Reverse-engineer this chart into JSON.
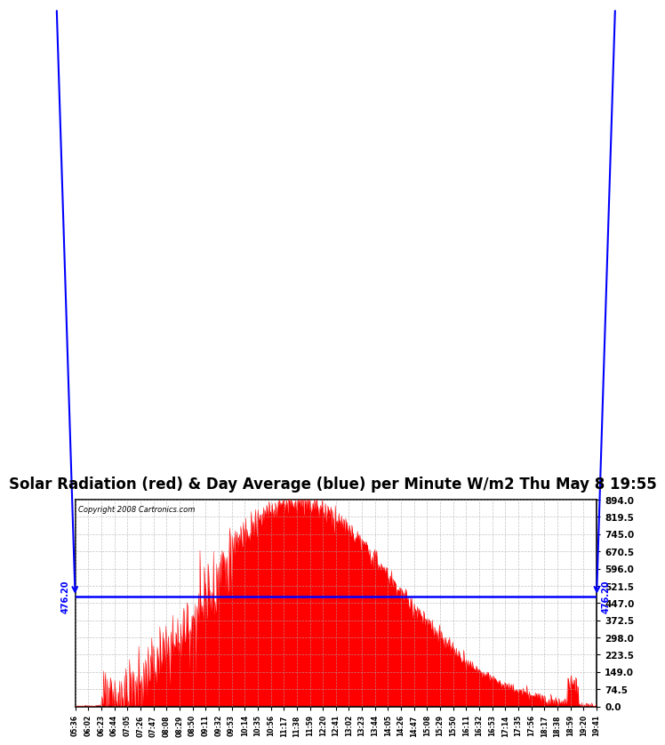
{
  "title": "Solar Radiation (red) & Day Average (blue) per Minute W/m2 Thu May 8 19:55",
  "copyright": "Copyright 2008 Cartronics.com",
  "y_max": 894.0,
  "y_min": 0.0,
  "y_ticks": [
    0.0,
    74.5,
    149.0,
    223.5,
    298.0,
    372.5,
    447.0,
    521.5,
    596.0,
    670.5,
    745.0,
    819.5,
    894.0
  ],
  "day_average": 476.2,
  "fill_color": "#FF0000",
  "avg_line_color": "#0000FF",
  "bg_color": "#FFFFFF",
  "plot_bg_color": "#FFFFFF",
  "grid_color": "#AAAAAA",
  "title_fontsize": 12,
  "avg_label": "476.20",
  "x_labels": [
    "05:36",
    "06:02",
    "06:23",
    "06:44",
    "07:05",
    "07:26",
    "07:47",
    "08:08",
    "08:29",
    "08:50",
    "09:11",
    "09:32",
    "09:53",
    "10:14",
    "10:35",
    "10:56",
    "11:17",
    "11:38",
    "11:59",
    "12:20",
    "12:41",
    "13:02",
    "13:23",
    "13:44",
    "14:05",
    "14:26",
    "14:47",
    "15:08",
    "15:29",
    "15:50",
    "16:11",
    "16:32",
    "16:53",
    "17:14",
    "17:35",
    "17:56",
    "18:17",
    "18:38",
    "18:59",
    "19:20",
    "19:41"
  ]
}
